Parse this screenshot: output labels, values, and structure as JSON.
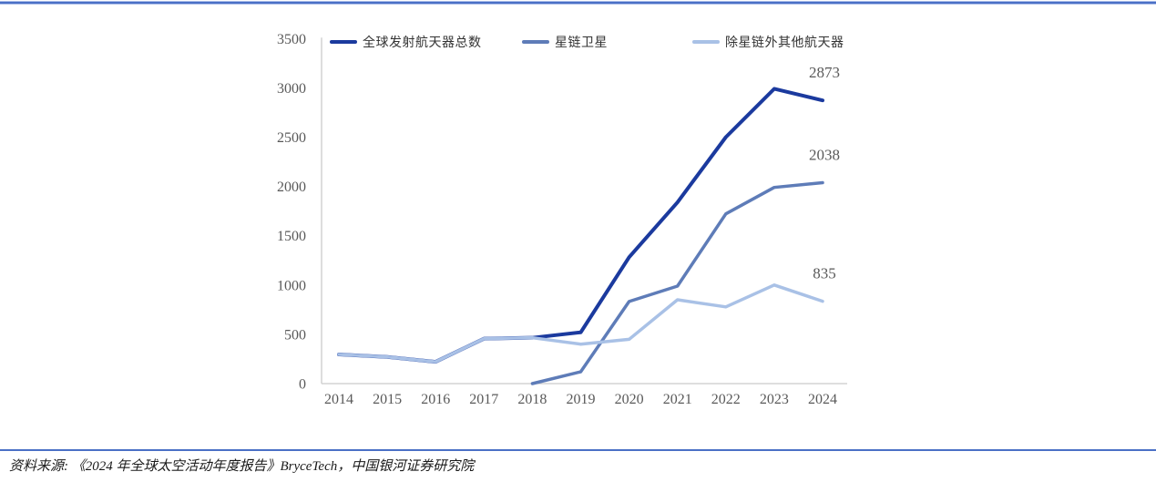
{
  "page": {
    "background": "#ffffff",
    "top_rule_color": "#4A70C6",
    "top_rule_halo": "#A9BCE8",
    "footer_rule_color": "#4A70C6"
  },
  "chart_data": {
    "type": "line",
    "title": "",
    "x": [
      "2014",
      "2015",
      "2016",
      "2017",
      "2018",
      "2019",
      "2020",
      "2021",
      "2022",
      "2023",
      "2024"
    ],
    "ylim": [
      0,
      3500
    ],
    "ytick_step": 500,
    "yticks": [
      0,
      500,
      1000,
      1500,
      2000,
      2500,
      3000,
      3500
    ],
    "grid": false,
    "legend_position": "top",
    "axis_color": "#CBCBCB",
    "tick_label_color": "#595959",
    "end_label_color": "#595959",
    "series": [
      {
        "name": "全球发射航天器总数",
        "color": "#1B3A9E",
        "stroke_width": 4,
        "values": [
          296,
          270,
          221,
          456,
          465,
          520,
          1282,
          1839,
          2500,
          2990,
          2873
        ],
        "end_label": "2873"
      },
      {
        "name": "星链卫星",
        "color": "#5E7CB8",
        "stroke_width": 3.5,
        "values": [
          null,
          null,
          null,
          null,
          0,
          120,
          833,
          989,
          1722,
          1990,
          2038
        ],
        "end_label": "2038"
      },
      {
        "name": "除星链外其他航天器",
        "color": "#A9C1E6",
        "stroke_width": 3.5,
        "values": [
          296,
          270,
          221,
          456,
          465,
          400,
          449,
          850,
          778,
          1000,
          835
        ],
        "end_label": "835"
      }
    ]
  },
  "footer": {
    "source_text": "资料来源: 《2024 年全球太空活动年度报告》BryceTech，中国银河证券研究院"
  }
}
